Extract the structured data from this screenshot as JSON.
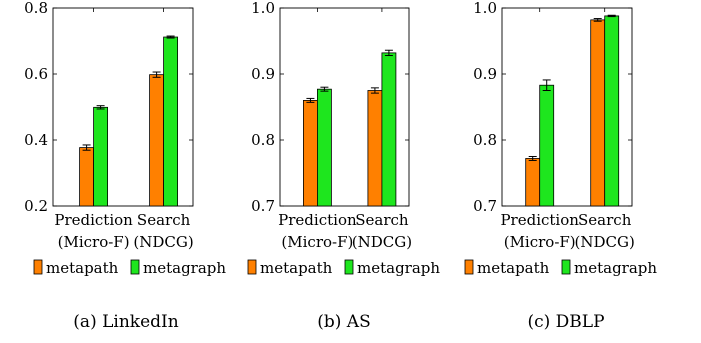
{
  "colors": {
    "metapath": "#ff8000",
    "metagraph": "#1ee61e",
    "axis": "#000000"
  },
  "chart_data": [
    {
      "type": "bar",
      "caption": "(a) LinkedIn",
      "categories": [
        "Prediction\n(Micro-F)",
        "Search\n(NDCG)"
      ],
      "category_lines": [
        [
          "Prediction",
          "(Micro-F)"
        ],
        [
          "Search",
          "(NDCG)"
        ]
      ],
      "ylim": [
        0.2,
        0.8
      ],
      "yticks": [
        0.2,
        0.4,
        0.6,
        0.8
      ],
      "ytick_labels": [
        "0.2",
        "0.4",
        "0.6",
        "0.8"
      ],
      "series": [
        {
          "name": "metapath",
          "values": [
            0.377,
            0.598
          ],
          "errors": [
            0.008,
            0.008
          ]
        },
        {
          "name": "metagraph",
          "values": [
            0.499,
            0.712
          ],
          "errors": [
            0.005,
            0.003
          ]
        }
      ],
      "legend": [
        "metapath",
        "metagraph"
      ]
    },
    {
      "type": "bar",
      "caption": "(b) AS",
      "categories": [
        "Prediction\n(Micro-F)",
        "Search\n(NDCG)"
      ],
      "category_lines": [
        [
          "Prediction",
          "(Micro-F)"
        ],
        [
          "Search",
          "(NDCG)"
        ]
      ],
      "ylim": [
        0.7,
        1.0
      ],
      "yticks": [
        0.7,
        0.8,
        0.9,
        1.0
      ],
      "ytick_labels": [
        "0.7",
        "0.8",
        "0.9",
        "1.0"
      ],
      "series": [
        {
          "name": "metapath",
          "values": [
            0.86,
            0.875
          ],
          "errors": [
            0.003,
            0.004
          ]
        },
        {
          "name": "metagraph",
          "values": [
            0.877,
            0.932
          ],
          "errors": [
            0.003,
            0.004
          ]
        }
      ],
      "legend": [
        "metapath",
        "metagraph"
      ]
    },
    {
      "type": "bar",
      "caption": "(c) DBLP",
      "categories": [
        "Prediction\n(Micro-F)",
        "Search\n(NDCG)"
      ],
      "category_lines": [
        [
          "Prediction",
          "(Micro-F)"
        ],
        [
          "Search",
          "(NDCG)"
        ]
      ],
      "ylim": [
        0.7,
        1.0
      ],
      "yticks": [
        0.7,
        0.8,
        0.9,
        1.0
      ],
      "ytick_labels": [
        "0.7",
        "0.8",
        "0.9",
        "1.0"
      ],
      "series": [
        {
          "name": "metapath",
          "values": [
            0.772,
            0.982
          ],
          "errors": [
            0.003,
            0.002
          ]
        },
        {
          "name": "metagraph",
          "values": [
            0.883,
            0.988
          ],
          "errors": [
            0.008,
            0.001
          ]
        }
      ],
      "legend": [
        "metapath",
        "metagraph"
      ]
    }
  ]
}
